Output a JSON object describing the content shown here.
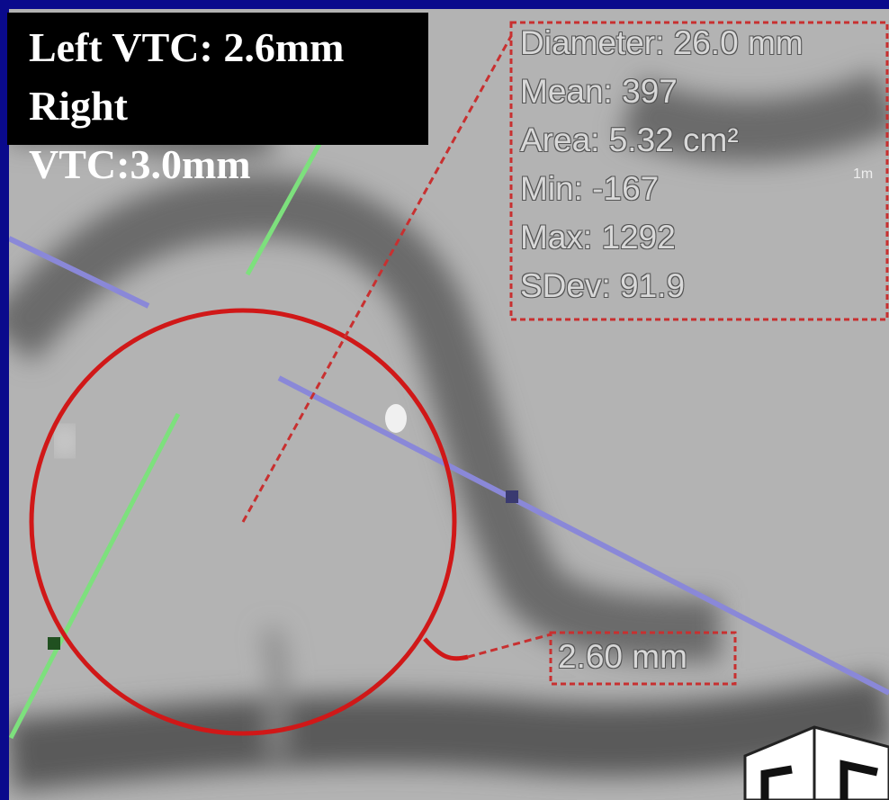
{
  "caption": {
    "lines": [
      "Left VTC: 2.6mm",
      "Right",
      "VTC:3.0mm"
    ]
  },
  "measurement": {
    "lines": [
      "Diameter: 26.0 mm",
      "Mean: 397",
      "Area: 5.32 cm²",
      "Min: -167",
      "Max: 1292",
      "SDev: 91.9"
    ]
  },
  "thickness_label": "2.60 mm",
  "side_text": "1m"
}
